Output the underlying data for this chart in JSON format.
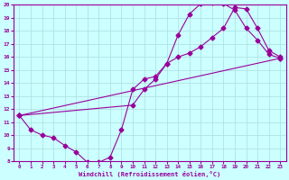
{
  "line1_x": [
    0,
    1,
    2,
    3,
    4,
    5,
    6,
    7,
    8,
    9,
    10,
    11,
    12,
    13,
    14,
    15,
    16,
    17,
    18,
    19,
    20,
    21,
    22,
    23
  ],
  "line1_y": [
    11.5,
    10.4,
    10.0,
    9.8,
    9.2,
    8.7,
    7.9,
    7.9,
    8.3,
    10.4,
    13.5,
    14.3,
    14.5,
    15.5,
    17.7,
    19.3,
    20.1,
    20.2,
    20.1,
    19.6,
    18.2,
    17.3,
    16.2,
    15.9
  ],
  "line2_x": [
    0,
    10,
    11,
    12,
    13,
    14,
    15,
    16,
    17,
    18,
    19,
    20,
    21,
    22,
    23
  ],
  "line2_y": [
    11.5,
    12.3,
    13.5,
    14.3,
    15.5,
    16.0,
    16.3,
    16.8,
    17.5,
    18.2,
    19.8,
    19.7,
    18.2,
    16.5,
    16.0
  ],
  "line3_x": [
    0,
    23
  ],
  "line3_y": [
    11.5,
    15.9
  ],
  "color": "#990099",
  "bg_color": "#ccffff",
  "grid_color": "#aadddd",
  "xlabel": "Windchill (Refroidissement éolien,°C)",
  "xlim": [
    -0.5,
    23.5
  ],
  "ylim": [
    8,
    20
  ],
  "xticks": [
    0,
    1,
    2,
    3,
    4,
    5,
    6,
    7,
    8,
    9,
    10,
    11,
    12,
    13,
    14,
    15,
    16,
    17,
    18,
    19,
    20,
    21,
    22,
    23
  ],
  "yticks": [
    8,
    9,
    10,
    11,
    12,
    13,
    14,
    15,
    16,
    17,
    18,
    19,
    20
  ],
  "marker": "D",
  "markersize": 2.5,
  "linewidth": 0.8
}
